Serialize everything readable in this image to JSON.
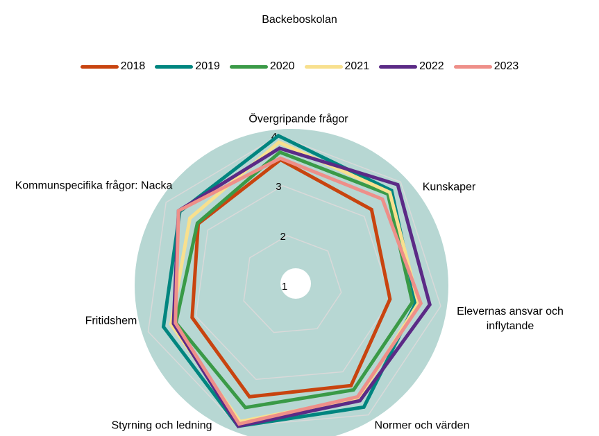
{
  "chart_data": {
    "type": "radar",
    "title": "Backeboskolan",
    "categories": [
      "Övergripande frågor",
      "Kunskaper",
      "Elevernas ansvar och inflytande",
      "Normer och värden",
      "Styrning och ledning",
      "Fritidshem",
      "Kommunspecifika frågor: Nacka"
    ],
    "series": [
      {
        "name": "2018",
        "color": "#c8440f",
        "values": [
          3.52,
          3.2,
          2.98,
          3.32,
          3.37,
          3.08,
          3.23
        ]
      },
      {
        "name": "2019",
        "color": "#00857f",
        "values": [
          4.0,
          3.75,
          3.5,
          3.82,
          4.0,
          3.68,
          3.67
        ]
      },
      {
        "name": "2020",
        "color": "#3a9a47",
        "values": [
          3.67,
          3.65,
          3.43,
          3.42,
          3.6,
          3.42,
          3.25
        ]
      },
      {
        "name": "2021",
        "color": "#f8e08e",
        "values": [
          3.87,
          3.7,
          3.55,
          3.62,
          3.9,
          3.52,
          3.43
        ]
      },
      {
        "name": "2022",
        "color": "#5b2a86",
        "values": [
          3.75,
          3.92,
          3.78,
          3.67,
          4.0,
          3.47,
          3.7
        ]
      },
      {
        "name": "2023",
        "color": "#ee8f89",
        "values": [
          3.55,
          3.5,
          3.6,
          3.58,
          3.95,
          3.43,
          3.7
        ]
      }
    ],
    "ylim": [
      1,
      4
    ],
    "yticks": [
      1,
      2,
      3,
      4
    ],
    "grid": true,
    "legend": "top"
  }
}
